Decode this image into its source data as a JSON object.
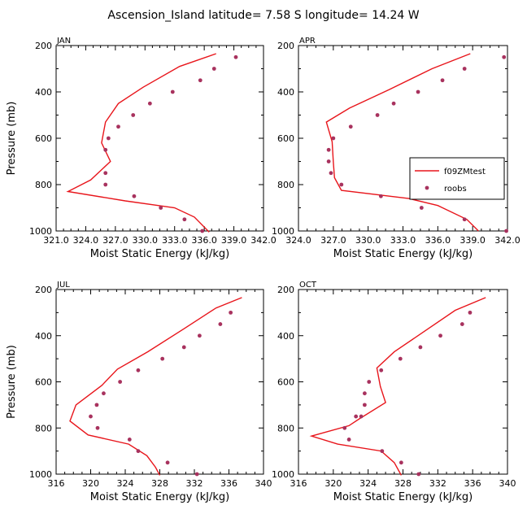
{
  "title": "Ascension_Island  latitude= 7.58 S longitude= 14.24 W",
  "legend": {
    "line_label": "f09ZMtest",
    "dot_label": "roobs"
  },
  "colors": {
    "line": "#e8151b",
    "dots": "#a8325e",
    "axis": "#000000"
  },
  "chart_data": [
    {
      "type": "line",
      "panel": "JAN",
      "xlabel": "Moist Static Energy (kJ/kg)",
      "ylabel": "Pressure (mb)",
      "xlim": [
        321.0,
        342.0
      ],
      "ylim": [
        200,
        1000
      ],
      "xticks": [
        "321.0",
        "324.0",
        "327.0",
        "330.0",
        "333.0",
        "336.0",
        "339.0",
        "342.0"
      ],
      "xtick_values": [
        321,
        324,
        327,
        330,
        333,
        336,
        339,
        342
      ],
      "yticks": [
        200,
        400,
        600,
        800,
        1000
      ],
      "series": [
        {
          "name": "f09ZMtest",
          "style": "line",
          "x": [
            337.2,
            333.5,
            329.8,
            327.3,
            326.0,
            325.6,
            326.5,
            324.5,
            322.2,
            328.0,
            333.0,
            335.0,
            336.5
          ],
          "y": [
            235,
            290,
            380,
            450,
            530,
            620,
            700,
            780,
            830,
            870,
            900,
            940,
            1005
          ]
        },
        {
          "name": "roobs",
          "style": "markers",
          "x": [
            339.2,
            337.0,
            335.6,
            332.8,
            330.5,
            328.8,
            327.3,
            326.3,
            326.0,
            326.0,
            326.0,
            328.9,
            331.6,
            334.0,
            335.8
          ],
          "y": [
            250,
            300,
            350,
            400,
            450,
            500,
            550,
            600,
            650,
            750,
            800,
            850,
            900,
            950,
            1000
          ]
        }
      ]
    },
    {
      "type": "line",
      "panel": "APR",
      "xlabel": "Moist Static Energy (kJ/kg)",
      "ylabel": "Pressure (mb)",
      "xlim": [
        324.0,
        342.0
      ],
      "ylim": [
        200,
        1000
      ],
      "xticks": [
        "324.0",
        "327.0",
        "330.0",
        "333.0",
        "336.0",
        "339.0",
        "342.0"
      ],
      "xtick_values": [
        324,
        327,
        330,
        333,
        336,
        339,
        342
      ],
      "yticks": [
        200,
        400,
        600,
        800,
        1000
      ],
      "series": [
        {
          "name": "f09ZMtest",
          "style": "line",
          "x": [
            338.8,
            335.5,
            331.8,
            328.4,
            326.4,
            326.9,
            327.0,
            327.1,
            327.7,
            333.5,
            336.0,
            338.5,
            339.5
          ],
          "y": [
            235,
            300,
            390,
            470,
            530,
            615,
            700,
            770,
            825,
            860,
            890,
            950,
            1000
          ]
        },
        {
          "name": "roobs",
          "style": "markers",
          "x": [
            341.7,
            338.3,
            336.4,
            334.3,
            332.2,
            330.8,
            328.5,
            327.0,
            326.6,
            326.6,
            326.8,
            327.7,
            331.1,
            334.6,
            338.3,
            341.9
          ],
          "y": [
            250,
            300,
            350,
            400,
            450,
            500,
            550,
            600,
            650,
            700,
            750,
            800,
            850,
            900,
            950,
            1000
          ]
        }
      ]
    },
    {
      "type": "line",
      "panel": "JUL",
      "xlabel": "Moist Static Energy (kJ/kg)",
      "ylabel": "Pressure (mb)",
      "xlim": [
        316,
        340
      ],
      "ylim": [
        200,
        1000
      ],
      "xticks": [
        "316",
        "320",
        "324",
        "328",
        "332",
        "336",
        "340"
      ],
      "xtick_values": [
        316,
        320,
        324,
        328,
        332,
        336,
        340
      ],
      "yticks": [
        200,
        400,
        600,
        800,
        1000
      ],
      "series": [
        {
          "name": "f09ZMtest",
          "style": "line",
          "x": [
            337.5,
            334.5,
            330.8,
            326.6,
            323.1,
            321.3,
            318.3,
            317.6,
            319.7,
            324.4,
            326.5,
            327.5,
            328.0
          ],
          "y": [
            235,
            280,
            370,
            470,
            545,
            615,
            700,
            770,
            830,
            870,
            920,
            970,
            1005
          ]
        },
        {
          "name": "roobs",
          "style": "markers",
          "x": [
            336.2,
            335.0,
            332.6,
            330.8,
            328.3,
            325.5,
            323.4,
            321.5,
            320.7,
            320.0,
            320.8,
            324.5,
            325.5,
            328.9,
            332.3
          ],
          "y": [
            300,
            350,
            400,
            450,
            500,
            550,
            600,
            650,
            700,
            750,
            800,
            850,
            900,
            950,
            1000
          ]
        }
      ]
    },
    {
      "type": "line",
      "panel": "OCT",
      "xlabel": "Moist Static Energy (kJ/kg)",
      "ylabel": "Pressure (mb)",
      "xlim": [
        316,
        340
      ],
      "ylim": [
        200,
        1000
      ],
      "xticks": [
        "316",
        "320",
        "324",
        "328",
        "332",
        "336",
        "340"
      ],
      "xtick_values": [
        316,
        320,
        324,
        328,
        332,
        336,
        340
      ],
      "yticks": [
        200,
        400,
        600,
        800,
        1000
      ],
      "series": [
        {
          "name": "f09ZMtest",
          "style": "line",
          "x": [
            337.5,
            334.0,
            330.5,
            327.0,
            325.0,
            325.4,
            326.0,
            323.0,
            321.8,
            317.5,
            320.5,
            325.5,
            327.0,
            327.8
          ],
          "y": [
            235,
            290,
            380,
            470,
            540,
            620,
            690,
            760,
            790,
            835,
            870,
            900,
            950,
            1005
          ]
        },
        {
          "name": "roobs",
          "style": "markers",
          "x": [
            335.7,
            334.8,
            332.3,
            330.0,
            327.7,
            325.5,
            324.1,
            323.6,
            323.6,
            323.2,
            322.6,
            321.3,
            321.8,
            325.6,
            327.8,
            329.8
          ],
          "y": [
            300,
            350,
            400,
            450,
            500,
            550,
            600,
            650,
            700,
            750,
            750,
            800,
            850,
            900,
            950,
            1000
          ]
        }
      ]
    }
  ]
}
